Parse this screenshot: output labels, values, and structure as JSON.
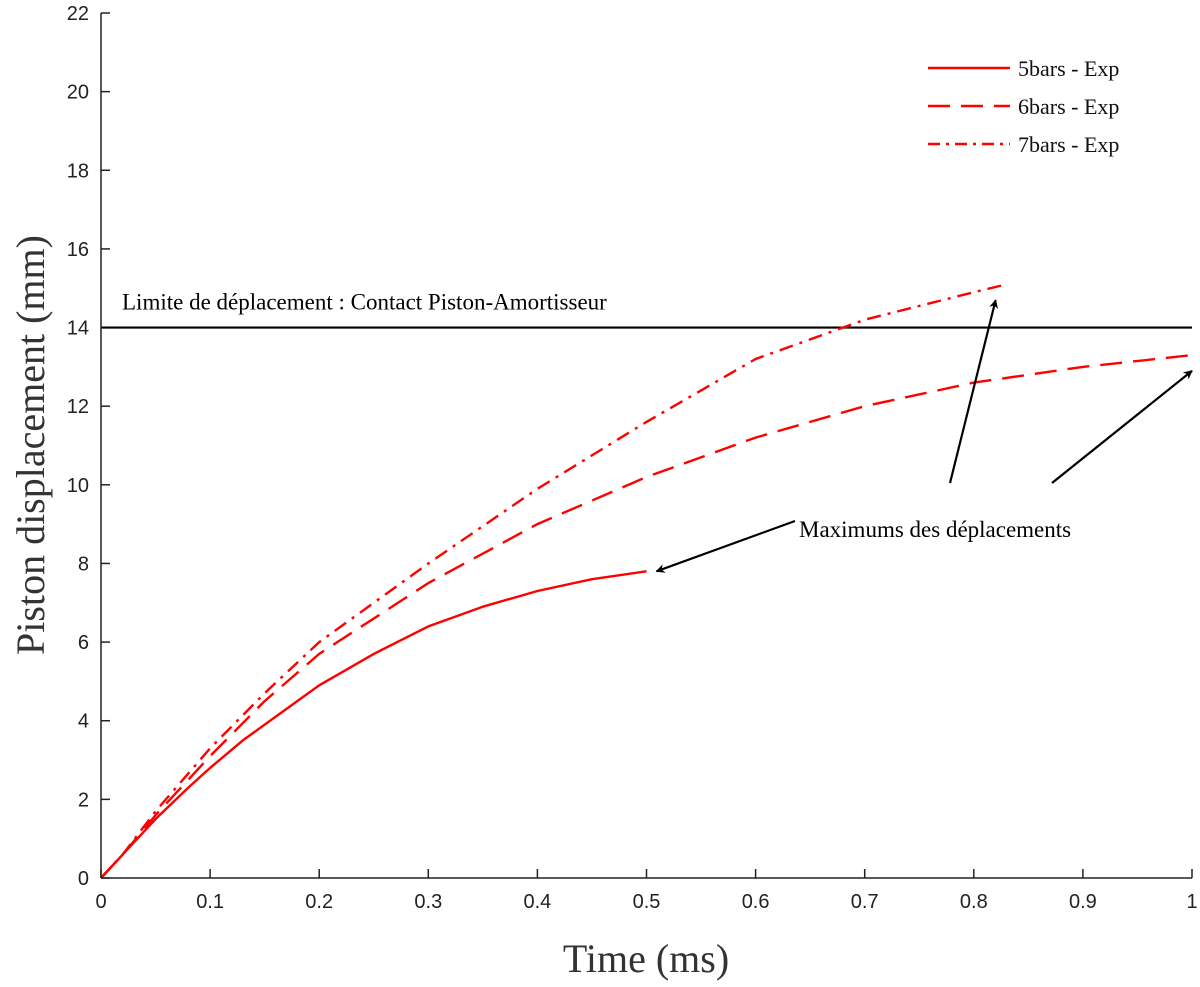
{
  "chart_data": {
    "type": "line",
    "title": "",
    "xlabel": "Time (ms)",
    "ylabel": "Piston displacement (mm)",
    "xlim": [
      0,
      1
    ],
    "ylim": [
      0,
      22
    ],
    "xticks": [
      0,
      0.1,
      0.2,
      0.3,
      0.4,
      0.5,
      0.6,
      0.7,
      0.8,
      0.9,
      1
    ],
    "xtick_labels": [
      "0",
      "0.1",
      "0.2",
      "0.3",
      "0.4",
      "0.5",
      "0.6",
      "0.7",
      "0.8",
      "0.9",
      "1"
    ],
    "yticks": [
      0,
      2,
      4,
      6,
      8,
      10,
      12,
      14,
      16,
      18,
      20,
      22
    ],
    "ytick_labels": [
      "0",
      "2",
      "4",
      "6",
      "8",
      "10",
      "12",
      "14",
      "16",
      "18",
      "20",
      "22"
    ],
    "grid": false,
    "legend_position": "top-right",
    "series": [
      {
        "name": "5bars - Exp",
        "style": "solid",
        "color": "#ff0000",
        "x": [
          0,
          0.02,
          0.05,
          0.08,
          0.1,
          0.13,
          0.17,
          0.2,
          0.25,
          0.3,
          0.35,
          0.4,
          0.45,
          0.5
        ],
        "y": [
          0,
          0.6,
          1.5,
          2.3,
          2.8,
          3.5,
          4.3,
          4.9,
          5.7,
          6.4,
          6.9,
          7.3,
          7.6,
          7.8
        ]
      },
      {
        "name": "6bars - Exp",
        "style": "dashed",
        "color": "#ff0000",
        "x": [
          0,
          0.02,
          0.05,
          0.1,
          0.15,
          0.2,
          0.3,
          0.4,
          0.5,
          0.6,
          0.7,
          0.8,
          0.9,
          1.0
        ],
        "y": [
          0,
          0.6,
          1.6,
          3.1,
          4.5,
          5.7,
          7.5,
          9.0,
          10.2,
          11.2,
          12.0,
          12.6,
          13.0,
          13.3
        ]
      },
      {
        "name": "7bars - Exp",
        "style": "dash-dot",
        "color": "#ff0000",
        "x": [
          0,
          0.02,
          0.05,
          0.1,
          0.15,
          0.2,
          0.3,
          0.4,
          0.5,
          0.6,
          0.7,
          0.8,
          0.83
        ],
        "y": [
          0,
          0.6,
          1.7,
          3.3,
          4.7,
          6.0,
          8.0,
          9.9,
          11.6,
          13.2,
          14.2,
          14.9,
          15.1
        ]
      }
    ],
    "reference_lines": [
      {
        "type": "horizontal",
        "y": 14,
        "color": "#000000",
        "label": "Limite de déplacement : Contact Piston-Amortisseur"
      }
    ],
    "annotations": [
      {
        "text": "Maximums des déplacements",
        "arrows_to": [
          [
            0.5,
            7.8
          ],
          [
            0.82,
            14.8
          ],
          [
            1.0,
            13.0
          ]
        ]
      }
    ]
  }
}
